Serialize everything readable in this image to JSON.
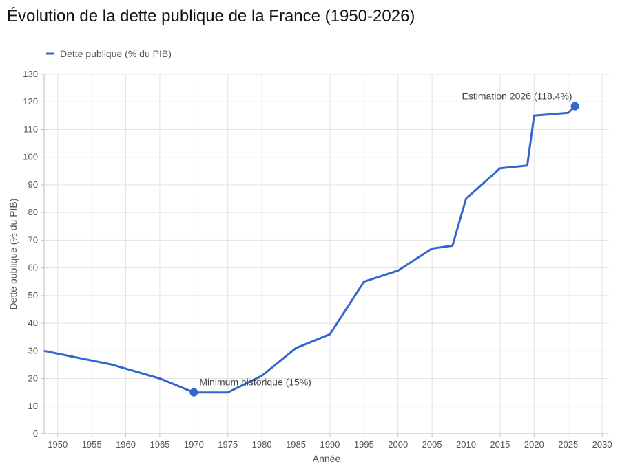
{
  "chart_data": {
    "type": "line",
    "title": "Évolution de la dette publique de la France (1950-2026)",
    "xlabel": "Année",
    "ylabel": "Dette publique (% du PIB)",
    "xlim": [
      1948,
      2031
    ],
    "ylim": [
      0,
      130
    ],
    "xticks": [
      1950,
      1955,
      1960,
      1965,
      1970,
      1975,
      1980,
      1985,
      1990,
      1995,
      2000,
      2005,
      2010,
      2015,
      2020,
      2025,
      2030
    ],
    "yticks": [
      0,
      10,
      20,
      30,
      40,
      50,
      60,
      70,
      80,
      90,
      100,
      110,
      120,
      130
    ],
    "grid": true,
    "legend_position": "top-left",
    "series": [
      {
        "name": "Dette publique (% du PIB)",
        "color": "#3366cc",
        "points": [
          {
            "x": 1948,
            "y": 30
          },
          {
            "x": 1952,
            "y": 28
          },
          {
            "x": 1958,
            "y": 25
          },
          {
            "x": 1965,
            "y": 20
          },
          {
            "x": 1970,
            "y": 15
          },
          {
            "x": 1975,
            "y": 15
          },
          {
            "x": 1980,
            "y": 21
          },
          {
            "x": 1985,
            "y": 31
          },
          {
            "x": 1990,
            "y": 36
          },
          {
            "x": 1995,
            "y": 55
          },
          {
            "x": 2000,
            "y": 59
          },
          {
            "x": 2005,
            "y": 67
          },
          {
            "x": 2008,
            "y": 68
          },
          {
            "x": 2010,
            "y": 85
          },
          {
            "x": 2015,
            "y": 96
          },
          {
            "x": 2019,
            "y": 97
          },
          {
            "x": 2020,
            "y": 115
          },
          {
            "x": 2025,
            "y": 116
          },
          {
            "x": 2026,
            "y": 118.4
          }
        ]
      }
    ],
    "annotations": [
      {
        "x": 1970,
        "y": 15,
        "text": "Minimum historique (15%)",
        "anchor": "above-right"
      },
      {
        "x": 2026,
        "y": 118.4,
        "text": "Estimation 2026 (118.4%)",
        "anchor": "above-left"
      }
    ]
  }
}
